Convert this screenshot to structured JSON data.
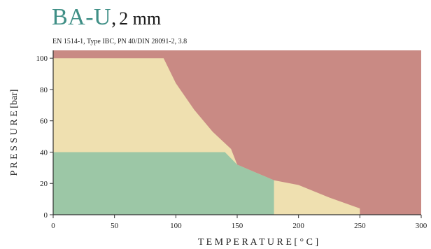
{
  "header": {
    "title_main": "BA-U",
    "title_sep": ",",
    "title_thickness": "2 mm",
    "subtitle": "EN 1514-1, Type IBC, PN 40/DIN 28091-2, 3.8"
  },
  "chart_data": {
    "type": "area",
    "title": "BA-U, 2 mm",
    "subtitle": "EN 1514-1, Type IBC, PN 40/DIN 28091-2, 3.8",
    "xlabel": "T E M P E R A T U R E  [ ° C ]",
    "ylabel": "P R E S S U R E  [bar]",
    "xlim": [
      0,
      300
    ],
    "ylim": [
      0,
      105
    ],
    "xticks": [
      0,
      50,
      100,
      150,
      200,
      250,
      300
    ],
    "yticks": [
      0,
      20,
      40,
      60,
      80,
      100
    ],
    "grid": false,
    "regions": [
      {
        "color": "#c98a84",
        "points": [
          [
            0,
            105
          ],
          [
            300,
            105
          ],
          [
            300,
            0
          ],
          [
            0,
            0
          ]
        ]
      },
      {
        "color": "#efe0b0",
        "points": [
          [
            0,
            0
          ],
          [
            0,
            100
          ],
          [
            90,
            100
          ],
          [
            100,
            84
          ],
          [
            115,
            67
          ],
          [
            130,
            53
          ],
          [
            145,
            42
          ],
          [
            150,
            32
          ],
          [
            165,
            27
          ],
          [
            180,
            22
          ],
          [
            200,
            19
          ],
          [
            225,
            11
          ],
          [
            250,
            4
          ],
          [
            250,
            0
          ]
        ]
      },
      {
        "color": "#9cc7a6",
        "points": [
          [
            0,
            0
          ],
          [
            0,
            40
          ],
          [
            140,
            40
          ],
          [
            150,
            32
          ],
          [
            165,
            27
          ],
          [
            180,
            22
          ],
          [
            180,
            0
          ]
        ]
      }
    ],
    "colors": {
      "red": "#c98a84",
      "yellow": "#efe0b0",
      "green": "#9cc7a6"
    }
  }
}
